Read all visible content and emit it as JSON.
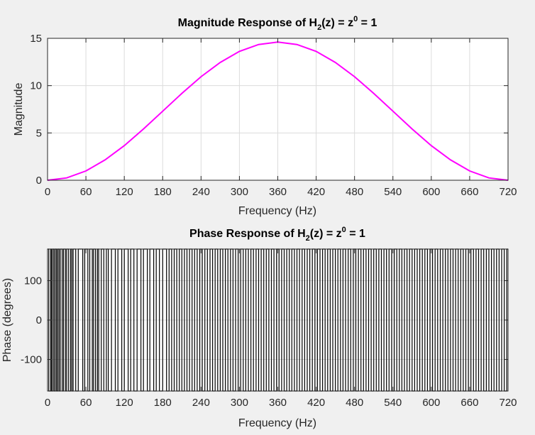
{
  "chart_data": [
    {
      "type": "line",
      "title": {
        "main": "Magnitude Response of H",
        "sub": "2",
        "mid": "(z) = z",
        "sup": "0",
        "end": " = 1"
      },
      "xlabel": "Frequency (Hz)",
      "ylabel": "Magnitude",
      "xlim": [
        0,
        720
      ],
      "ylim": [
        0,
        15
      ],
      "xticks": [
        "0",
        "60",
        "120",
        "180",
        "240",
        "300",
        "360",
        "420",
        "480",
        "540",
        "600",
        "660",
        "720"
      ],
      "yticks": [
        "0",
        "5",
        "10",
        "15"
      ],
      "grid": true,
      "series": [
        {
          "color": "#ff00ff",
          "x": [
            0,
            30,
            60,
            90,
            120,
            150,
            180,
            210,
            240,
            270,
            300,
            330,
            360,
            390,
            420,
            450,
            480,
            510,
            540,
            570,
            600,
            630,
            660,
            690,
            720
          ],
          "y": [
            0,
            0.25,
            0.98,
            2.15,
            3.66,
            5.42,
            7.3,
            9.18,
            10.94,
            12.45,
            13.62,
            14.35,
            14.6,
            14.35,
            13.62,
            12.45,
            10.94,
            9.18,
            7.3,
            5.42,
            3.66,
            2.15,
            0.98,
            0.25,
            0
          ]
        }
      ]
    },
    {
      "type": "line",
      "title": {
        "main": "Phase Response of H",
        "sub": "2",
        "mid": "(z) = z",
        "sup": "0",
        "end": " = 1"
      },
      "xlabel": "Frequency (Hz)",
      "ylabel": "Phase (degrees)",
      "xlim": [
        0,
        720
      ],
      "ylim": [
        -180,
        180
      ],
      "xticks": [
        "0",
        "60",
        "120",
        "180",
        "240",
        "300",
        "360",
        "420",
        "480",
        "540",
        "600",
        "660",
        "720"
      ],
      "yticks": [
        "100",
        "0",
        "-100"
      ],
      "grid": true,
      "series": [
        {
          "color": "#000000",
          "note_values": "phase toggles between +180 and -180 degrees across the whole band",
          "x": [
            0,
            2,
            5,
            6,
            8,
            10,
            12,
            14,
            16,
            18,
            20,
            23,
            25,
            28,
            30,
            33,
            36,
            38,
            40,
            44,
            48,
            55,
            58,
            63,
            66,
            70,
            72,
            75,
            78,
            80,
            84,
            88,
            92,
            95,
            100,
            106,
            110,
            116,
            120,
            126,
            130,
            135,
            140,
            146,
            150,
            156,
            160,
            166,
            170,
            175,
            180,
            186,
            190,
            194,
            198,
            202,
            206,
            210,
            214,
            218,
            222,
            226,
            230,
            234,
            238,
            242,
            246,
            250,
            254,
            258,
            262,
            266,
            270,
            274,
            278,
            282,
            286,
            290,
            294,
            298,
            302,
            306,
            310,
            314,
            318,
            322,
            326,
            330,
            334,
            338,
            342,
            346,
            350,
            354,
            358,
            362,
            366,
            370,
            374,
            378,
            382,
            386,
            390,
            394,
            398,
            402,
            406,
            410,
            414,
            418,
            422,
            426,
            430,
            434,
            438,
            442,
            446,
            450,
            454,
            458,
            462,
            466,
            470,
            474,
            478,
            482,
            486,
            490,
            494,
            498,
            502,
            506,
            510,
            514,
            518,
            522,
            526,
            530,
            534,
            538,
            542,
            546,
            550,
            554,
            558,
            562,
            566,
            570,
            574,
            578,
            582,
            586,
            590,
            594,
            598,
            602,
            606,
            610,
            614,
            618,
            622,
            626,
            630,
            634,
            638,
            642,
            646,
            650,
            654,
            658,
            662,
            666,
            670,
            674,
            678,
            682,
            686,
            690,
            694,
            698,
            702,
            706,
            710,
            714,
            718
          ],
          "y_state": [
            1,
            0,
            1,
            0,
            1,
            0,
            1,
            0,
            1,
            0,
            1,
            0,
            1,
            0,
            1,
            0,
            1,
            0,
            1,
            0,
            1,
            0,
            1,
            0,
            1,
            0,
            1,
            0,
            1,
            0,
            1,
            0,
            1,
            0,
            1,
            0,
            1,
            0,
            1,
            0,
            1,
            0,
            1,
            0,
            1,
            0,
            1,
            0,
            1,
            0,
            1,
            0,
            1,
            0,
            1,
            0,
            1,
            0,
            1,
            0,
            1,
            0,
            1,
            0,
            1,
            0,
            1,
            0,
            1,
            0,
            1,
            0,
            1,
            0,
            1,
            0,
            1,
            0,
            1,
            0,
            1,
            0,
            1,
            0,
            1,
            0,
            1,
            0,
            1,
            0,
            1,
            0,
            1,
            0,
            1,
            0,
            1,
            0,
            1,
            0,
            1,
            0,
            1,
            0,
            1,
            0,
            1,
            0,
            1,
            0,
            1,
            0,
            1,
            0,
            1,
            0,
            1,
            0,
            1,
            0,
            1,
            0,
            1,
            0,
            1,
            0,
            1,
            0,
            1,
            0,
            1,
            0,
            1,
            0,
            1,
            0,
            1,
            0,
            1,
            0,
            1,
            0,
            1,
            0,
            1,
            0,
            1,
            0,
            1,
            0,
            1,
            0,
            1,
            0,
            1,
            0,
            1,
            0,
            1,
            0,
            1,
            0,
            1,
            0,
            1,
            0,
            1,
            0,
            1,
            0,
            1,
            0,
            1,
            0,
            1,
            0,
            1,
            0,
            1,
            0,
            1,
            0,
            1,
            0,
            1
          ]
        }
      ]
    }
  ]
}
